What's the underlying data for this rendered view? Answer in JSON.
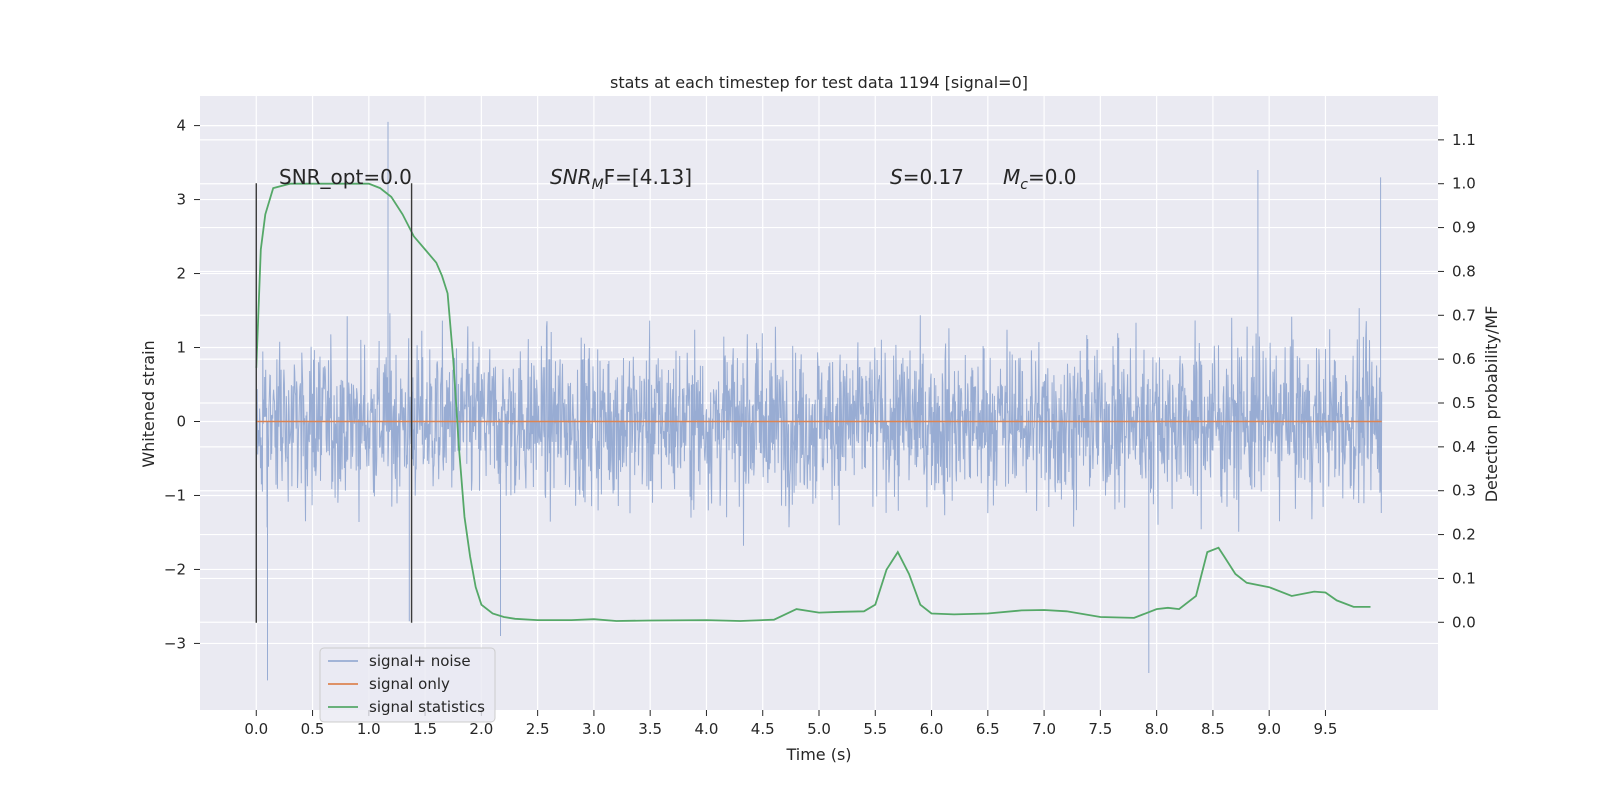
{
  "chart_data": {
    "type": "line",
    "title": "stats at each timestep for test data 1194 [signal=0]",
    "xlabel": "Time (s)",
    "ylabel_left": "Whitened strain",
    "ylabel_right": "Detection probability/MF",
    "xlim": [
      -0.5,
      10.5
    ],
    "ylim_left": [
      -3.9,
      4.4
    ],
    "ylim_right": [
      -0.2,
      1.2
    ],
    "x_ticks": [
      "0.0",
      "0.5",
      "1.0",
      "1.5",
      "2.0",
      "2.5",
      "3.0",
      "3.5",
      "4.0",
      "4.5",
      "5.0",
      "5.5",
      "6.0",
      "6.5",
      "7.0",
      "7.5",
      "8.0",
      "8.5",
      "9.0",
      "9.5"
    ],
    "y_ticks_left": [
      "−3",
      "−2",
      "−1",
      "0",
      "1",
      "2",
      "3",
      "4"
    ],
    "y_ticks_left_values": [
      -3,
      -2,
      -1,
      0,
      1,
      2,
      3,
      4
    ],
    "y_ticks_right": [
      "0.0",
      "0.1",
      "0.2",
      "0.3",
      "0.4",
      "0.5",
      "0.6",
      "0.7",
      "0.8",
      "0.9",
      "1.0",
      "1.1"
    ],
    "y_ticks_right_values": [
      0.0,
      0.1,
      0.2,
      0.3,
      0.4,
      0.5,
      0.6,
      0.7,
      0.8,
      0.9,
      1.0,
      1.1
    ],
    "grid": true,
    "legend_position": "lower-left",
    "annotations": {
      "snr_opt": "SNR_opt=0.0",
      "snr_mf_main": "SNR",
      "snr_mf_sub": "M",
      "snr_mf_rest": "F=[4.13]",
      "s_sym": "S",
      "s_rest": "=0.17",
      "mc_sym": "M",
      "mc_sub": "c",
      "mc_rest": "=0.0"
    },
    "vlines_x": [
      0.0,
      1.38
    ],
    "series": [
      {
        "name": "signal+ noise",
        "color": "#8fa5cf",
        "axis": "left",
        "x_range": [
          0.0,
          10.0
        ],
        "typical_band": [
          -1.5,
          1.5
        ],
        "notable_peaks": [
          [
            0.0,
            3.2
          ],
          [
            0.0,
            -2.7
          ],
          [
            0.1,
            -3.5
          ],
          [
            1.17,
            4.05
          ],
          [
            1.36,
            -2.7
          ],
          [
            2.17,
            -2.9
          ],
          [
            8.9,
            3.4
          ],
          [
            9.99,
            3.3
          ],
          [
            7.93,
            -3.4
          ]
        ]
      },
      {
        "name": "signal only",
        "color": "#dd8452",
        "axis": "left",
        "x": [
          0.0,
          10.0
        ],
        "y": [
          0.0,
          0.0
        ]
      },
      {
        "name": "signal statistics",
        "color": "#55a868",
        "axis": "right",
        "x": [
          0.0,
          0.04,
          0.08,
          0.15,
          0.3,
          0.5,
          0.8,
          1.0,
          1.1,
          1.2,
          1.3,
          1.4,
          1.5,
          1.6,
          1.65,
          1.7,
          1.75,
          1.8,
          1.85,
          1.9,
          1.95,
          2.0,
          2.1,
          2.2,
          2.3,
          2.5,
          2.8,
          3.0,
          3.2,
          3.5,
          4.0,
          4.3,
          4.6,
          4.8,
          5.0,
          5.2,
          5.4,
          5.5,
          5.6,
          5.7,
          5.8,
          5.9,
          6.0,
          6.2,
          6.5,
          6.8,
          7.0,
          7.2,
          7.5,
          7.8,
          8.0,
          8.1,
          8.2,
          8.35,
          8.45,
          8.55,
          8.6,
          8.7,
          8.8,
          9.0,
          9.2,
          9.4,
          9.5,
          9.6,
          9.75,
          9.9
        ],
        "y": [
          0.58,
          0.85,
          0.93,
          0.99,
          1.0,
          1.0,
          1.0,
          1.0,
          0.99,
          0.97,
          0.93,
          0.88,
          0.85,
          0.82,
          0.79,
          0.75,
          0.6,
          0.4,
          0.24,
          0.15,
          0.08,
          0.04,
          0.02,
          0.012,
          0.008,
          0.005,
          0.005,
          0.007,
          0.003,
          0.004,
          0.005,
          0.003,
          0.006,
          0.03,
          0.022,
          0.024,
          0.025,
          0.04,
          0.12,
          0.16,
          0.11,
          0.04,
          0.02,
          0.018,
          0.02,
          0.027,
          0.028,
          0.025,
          0.012,
          0.01,
          0.03,
          0.033,
          0.03,
          0.06,
          0.16,
          0.17,
          0.15,
          0.11,
          0.09,
          0.08,
          0.06,
          0.07,
          0.068,
          0.05,
          0.035,
          0.035
        ]
      }
    ]
  }
}
